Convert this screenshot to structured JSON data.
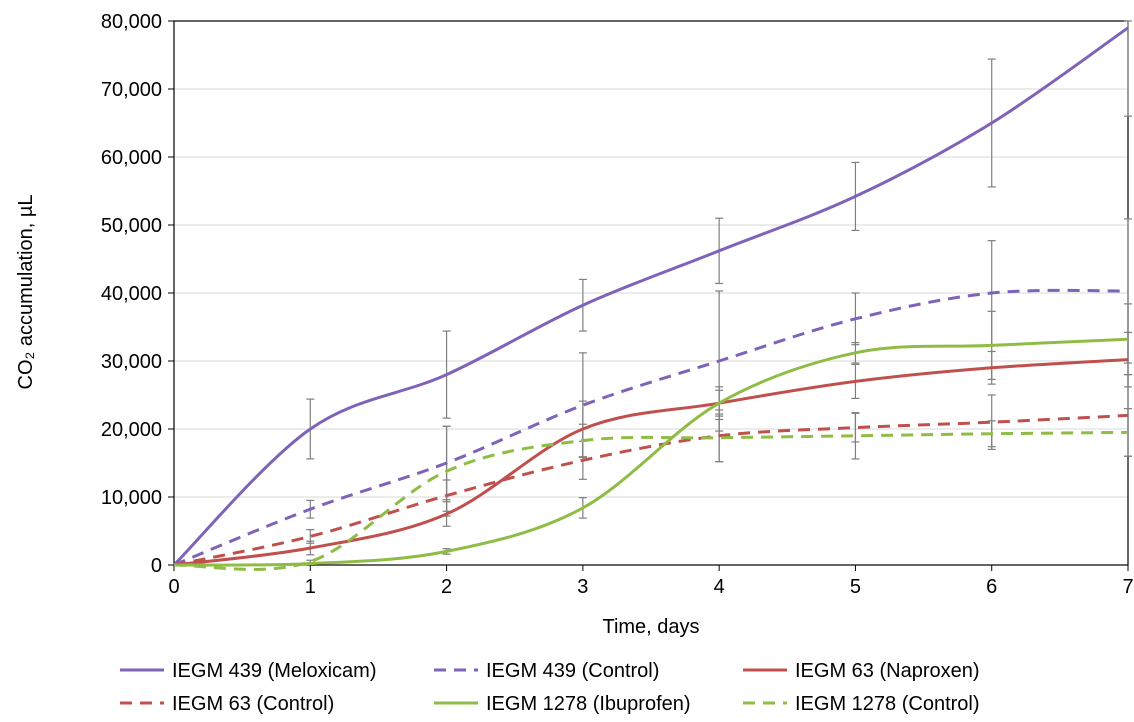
{
  "chart_data": {
    "type": "line",
    "title": "",
    "xlabel": "Time, days",
    "ylabel": "CO₂ accumulation, µL",
    "xlim": [
      0,
      7
    ],
    "ylim": [
      0,
      80000
    ],
    "x_ticks": [
      0,
      1,
      2,
      3,
      4,
      5,
      6,
      7
    ],
    "y_ticks": [
      0,
      10000,
      20000,
      30000,
      40000,
      50000,
      60000,
      70000,
      80000
    ],
    "x_tick_labels": [
      "0",
      "1",
      "2",
      "3",
      "4",
      "5",
      "6",
      "7"
    ],
    "y_tick_labels": [
      "0",
      "10,000",
      "20,000",
      "30,000",
      "40,000",
      "50,000",
      "60,000",
      "70,000",
      "80,000"
    ],
    "grid": "horizontal",
    "legend_position": "bottom",
    "x": [
      0,
      1,
      2,
      3,
      4,
      5,
      6,
      7
    ],
    "series": [
      {
        "name": "IEGM 439 (Meloxicam)",
        "color": "#7f63b8",
        "dash": "solid",
        "values": [
          0,
          20000,
          28000,
          38200,
          46200,
          54200,
          65000,
          79000
        ],
        "errors": [
          0,
          4400,
          6400,
          3800,
          4800,
          5000,
          9400,
          13000
        ]
      },
      {
        "name": "IEGM 439 (Control)",
        "color": "#7f63b8",
        "dash": "dashed",
        "values": [
          0,
          8200,
          15000,
          23500,
          30000,
          36200,
          40000,
          40300
        ],
        "errors": [
          0,
          1300,
          5400,
          7700,
          10300,
          3800,
          7700,
          10600
        ]
      },
      {
        "name": "IEGM 63 (Naproxen)",
        "color": "#c0504d",
        "dash": "solid",
        "values": [
          0,
          2500,
          7500,
          20000,
          23800,
          27000,
          29000,
          30200
        ],
        "errors": [
          0,
          1000,
          1800,
          4100,
          2400,
          2500,
          2400,
          4000
        ]
      },
      {
        "name": "IEGM 63 (Control)",
        "color": "#c0504d",
        "dash": "dashed",
        "values": [
          0,
          4200,
          10200,
          15400,
          19000,
          20200,
          21000,
          22000
        ],
        "errors": [
          0,
          1000,
          2300,
          2800,
          3800,
          2100,
          4000,
          6000
        ]
      },
      {
        "name": "IEGM 1278 (Ibuprofen)",
        "color": "#8fbc45",
        "dash": "solid",
        "values": [
          0,
          200,
          2000,
          8400,
          23800,
          31200,
          32300,
          33200
        ],
        "errors": [
          0,
          100,
          400,
          1500,
          1900,
          1500,
          5000,
          5200
        ]
      },
      {
        "name": "IEGM 1278 (Control)",
        "color": "#8fbc45",
        "dash": "dashed",
        "values": [
          0,
          500,
          13800,
          18300,
          18700,
          19000,
          19300,
          19500
        ],
        "errors": [
          0,
          200,
          6600,
          2400,
          3500,
          3400,
          1900,
          3500
        ]
      }
    ]
  }
}
